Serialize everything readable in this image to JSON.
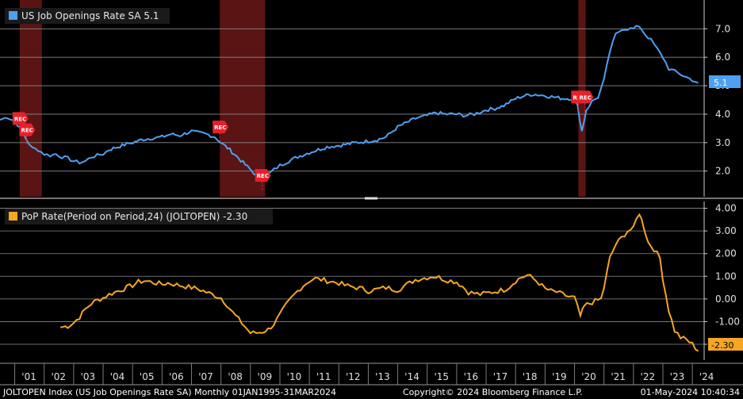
{
  "chart_data": [
    {
      "type": "line",
      "panel": "top",
      "legend": "US Job Openings Rate SA 5.1",
      "series_name": "US Job Openings Rate SA",
      "color": "#4ea0f0",
      "last_value_label": "5.1",
      "yticks": [
        2.0,
        3.0,
        4.0,
        5.0,
        6.0,
        7.0
      ],
      "ytick_labels": [
        "2.0",
        "3.0",
        "4.0",
        "5.0",
        "6.0",
        "7.0"
      ],
      "ylim": [
        1.1,
        7.9
      ],
      "xlim": [
        2000.5,
        2024.4
      ],
      "recession_bands": [
        [
          2001.17,
          2001.92
        ],
        [
          2007.96,
          2009.5
        ],
        [
          2020.13,
          2020.38
        ]
      ],
      "rec_markers": [
        {
          "label": "REC",
          "x": 2001.17,
          "y": 3.85
        },
        {
          "label": "REC",
          "x": 2001.4,
          "y": 3.45
        },
        {
          "label": "REC",
          "x": 2007.96,
          "y": 3.55
        },
        {
          "label": "REC",
          "x": 2009.4,
          "y": 1.85
        },
        {
          "label": "REC",
          "x": 2020.13,
          "y": 4.6
        },
        {
          "label": "REC",
          "x": 2020.35,
          "y": 4.6
        }
      ],
      "x": [
        2000.5,
        2000.75,
        2001.0,
        2001.2,
        2001.4,
        2001.6,
        2001.8,
        2002.0,
        2002.2,
        2002.4,
        2002.6,
        2002.8,
        2003.0,
        2003.2,
        2003.4,
        2003.6,
        2003.8,
        2004.0,
        2004.2,
        2004.5,
        2004.8,
        2005.0,
        2005.3,
        2005.6,
        2006.0,
        2006.3,
        2006.6,
        2007.0,
        2007.2,
        2007.5,
        2007.8,
        2008.0,
        2008.3,
        2008.6,
        2008.9,
        2009.2,
        2009.5,
        2009.8,
        2010.0,
        2010.3,
        2010.6,
        2011.0,
        2011.3,
        2011.6,
        2012.0,
        2012.3,
        2012.6,
        2013.0,
        2013.3,
        2013.6,
        2014.0,
        2014.3,
        2014.6,
        2015.0,
        2015.3,
        2015.6,
        2016.0,
        2016.3,
        2016.6,
        2017.0,
        2017.3,
        2017.6,
        2018.0,
        2018.3,
        2018.6,
        2019.0,
        2019.3,
        2019.6,
        2019.9,
        2020.1,
        2020.25,
        2020.4,
        2020.6,
        2020.8,
        2021.0,
        2021.2,
        2021.4,
        2021.6,
        2021.8,
        2022.0,
        2022.2,
        2022.4,
        2022.6,
        2022.8,
        2023.0,
        2023.2,
        2023.4,
        2023.6,
        2023.8,
        2024.0,
        2024.2
      ],
      "values": [
        3.8,
        3.9,
        3.75,
        3.5,
        3.1,
        2.8,
        2.75,
        2.6,
        2.55,
        2.6,
        2.5,
        2.45,
        2.35,
        2.3,
        2.35,
        2.5,
        2.55,
        2.6,
        2.75,
        2.85,
        2.95,
        3.0,
        3.1,
        3.15,
        3.2,
        3.3,
        3.25,
        3.4,
        3.35,
        3.3,
        3.2,
        3.0,
        2.75,
        2.45,
        2.15,
        1.85,
        1.8,
        2.05,
        2.2,
        2.35,
        2.5,
        2.65,
        2.75,
        2.85,
        2.9,
        2.95,
        3.0,
        3.05,
        3.1,
        3.2,
        3.55,
        3.7,
        3.85,
        3.95,
        4.05,
        4.0,
        4.0,
        3.95,
        4.0,
        4.15,
        4.2,
        4.3,
        4.55,
        4.65,
        4.7,
        4.65,
        4.6,
        4.55,
        4.55,
        4.3,
        3.4,
        4.15,
        4.45,
        4.6,
        5.2,
        6.2,
        6.8,
        7.0,
        7.0,
        7.0,
        7.1,
        6.8,
        6.6,
        6.3,
        6.0,
        5.6,
        5.5,
        5.4,
        5.3,
        5.2,
        5.1
      ]
    },
    {
      "type": "line",
      "panel": "bottom",
      "legend": "PoP Rate(Period on Period,24) (JOLTOPEN) -2.30",
      "series_name": "PoP Rate(Period on Period,24) (JOLTOPEN)",
      "color": "#f5a623",
      "last_value_label": "-2.30",
      "yticks": [
        -2.0,
        -1.0,
        0.0,
        1.0,
        2.0,
        3.0,
        4.0
      ],
      "ytick_labels": [
        "-2.00",
        "-1.00",
        "0.00",
        "1.00",
        "2.00",
        "3.00",
        "4.00"
      ],
      "ylim": [
        -2.7,
        4.3
      ],
      "xlim": [
        2000.5,
        2024.4
      ],
      "x": [
        2002.55,
        2002.8,
        2003.0,
        2003.2,
        2003.4,
        2003.6,
        2003.8,
        2004.0,
        2004.2,
        2004.4,
        2004.6,
        2004.8,
        2005.0,
        2005.2,
        2005.4,
        2005.6,
        2005.8,
        2006.0,
        2006.2,
        2006.4,
        2006.6,
        2006.8,
        2007.0,
        2007.2,
        2007.4,
        2007.6,
        2007.8,
        2008.0,
        2008.2,
        2008.4,
        2008.6,
        2008.8,
        2009.0,
        2009.2,
        2009.4,
        2009.6,
        2009.8,
        2010.0,
        2010.2,
        2010.4,
        2010.6,
        2010.8,
        2011.0,
        2011.2,
        2011.4,
        2011.6,
        2011.8,
        2012.0,
        2012.2,
        2012.4,
        2012.6,
        2012.8,
        2013.0,
        2013.2,
        2013.4,
        2013.6,
        2013.8,
        2014.0,
        2014.2,
        2014.4,
        2014.6,
        2014.8,
        2015.0,
        2015.2,
        2015.4,
        2015.6,
        2015.8,
        2016.0,
        2016.2,
        2016.4,
        2016.6,
        2016.8,
        2017.0,
        2017.2,
        2017.4,
        2017.6,
        2017.8,
        2018.0,
        2018.2,
        2018.4,
        2018.6,
        2018.8,
        2019.0,
        2019.2,
        2019.4,
        2019.6,
        2019.8,
        2020.0,
        2020.1,
        2020.2,
        2020.35,
        2020.5,
        2020.7,
        2020.9,
        2021.0,
        2021.2,
        2021.4,
        2021.6,
        2021.8,
        2022.0,
        2022.1,
        2022.2,
        2022.35,
        2022.5,
        2022.7,
        2022.9,
        2023.0,
        2023.2,
        2023.4,
        2023.6,
        2023.8,
        2024.0,
        2024.2
      ],
      "values": [
        -1.25,
        -1.2,
        -1.05,
        -0.8,
        -0.45,
        -0.2,
        -0.05,
        0.05,
        0.2,
        0.3,
        0.4,
        0.5,
        0.6,
        0.75,
        0.8,
        0.75,
        0.7,
        0.65,
        0.7,
        0.65,
        0.6,
        0.55,
        0.5,
        0.45,
        0.35,
        0.25,
        0.15,
        0.05,
        -0.25,
        -0.6,
        -0.9,
        -1.2,
        -1.5,
        -1.5,
        -1.45,
        -1.35,
        -1.1,
        -0.7,
        -0.3,
        0.05,
        0.35,
        0.6,
        0.8,
        0.9,
        0.85,
        0.8,
        0.75,
        0.7,
        0.6,
        0.55,
        0.5,
        0.45,
        0.35,
        0.4,
        0.45,
        0.5,
        0.45,
        0.4,
        0.55,
        0.7,
        0.85,
        0.9,
        0.95,
        1.0,
        0.95,
        0.85,
        0.8,
        0.75,
        0.55,
        0.3,
        0.25,
        0.2,
        0.25,
        0.3,
        0.35,
        0.4,
        0.55,
        0.8,
        0.95,
        1.05,
        0.9,
        0.7,
        0.45,
        0.35,
        0.3,
        0.2,
        0.1,
        0.05,
        -0.35,
        -0.75,
        -0.3,
        -0.2,
        -0.1,
        0.0,
        0.5,
        1.8,
        2.4,
        2.7,
        3.0,
        3.1,
        3.5,
        3.8,
        3.2,
        2.5,
        2.2,
        1.8,
        0.9,
        -0.5,
        -1.4,
        -1.7,
        -1.8,
        -2.0,
        -2.3
      ]
    }
  ],
  "x_axis": {
    "tick_labels": [
      "'01",
      "'02",
      "'03",
      "'04",
      "'05",
      "'06",
      "'07",
      "'08",
      "'09",
      "'10",
      "'11",
      "'12",
      "'13",
      "'14",
      "'15",
      "'16",
      "'17",
      "'18",
      "'19",
      "'20",
      "'21",
      "'22",
      "'23",
      "'24"
    ],
    "tick_years": [
      2001,
      2002,
      2003,
      2004,
      2005,
      2006,
      2007,
      2008,
      2009,
      2010,
      2011,
      2012,
      2013,
      2014,
      2015,
      2016,
      2017,
      2018,
      2019,
      2020,
      2021,
      2022,
      2023,
      2024
    ]
  },
  "footer": {
    "left": "JOLTOPEN Index (US Job Openings Rate SA)  Monthly 01JAN1995-31MAR2024",
    "center": "Copyright© 2024 Bloomberg Finance L.P.",
    "right": "01-May-2024 10:40:34"
  },
  "colors": {
    "background": "#000000",
    "grid": "#8a8a8a",
    "recession": "#5a1414",
    "blue": "#4ea0f0",
    "orange": "#f5a623"
  }
}
